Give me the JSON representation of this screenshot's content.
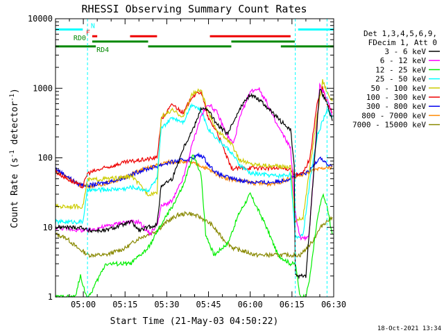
{
  "chart_data": {
    "type": "line",
    "title": "RHESSI Observing Summary Count Rates",
    "xlabel": "Start Time (21-May-03 04:50:22)",
    "ylabel_parts": [
      "Count Rate (s",
      "-1",
      " detector",
      "-1",
      ")"
    ],
    "ylabel": "Count Rate (s-1 detector-1)",
    "yscale": "log",
    "ylim": [
      1,
      10000
    ],
    "xlim_minutes": [
      0,
      100
    ],
    "x_ticks": [
      {
        "t": 10,
        "label": "05:00"
      },
      {
        "t": 25,
        "label": "05:15"
      },
      {
        "t": 40,
        "label": "05:30"
      },
      {
        "t": 55,
        "label": "05:45"
      },
      {
        "t": 70,
        "label": "06:00"
      },
      {
        "t": 85,
        "label": "06:15"
      },
      {
        "t": 100,
        "label": "06:30"
      }
    ],
    "y_ticks": [
      {
        "v": 1,
        "label": "1"
      },
      {
        "v": 10,
        "label": "10"
      },
      {
        "v": 100,
        "label": "100"
      },
      {
        "v": 1000,
        "label": "1000"
      },
      {
        "v": 10000,
        "label": "10000"
      }
    ],
    "legend_header": [
      "Det 1,3,4,5,6,9,",
      "FDecim 1, Att 0"
    ],
    "legend_position": "right",
    "footer_date": "18-Oct-2021 13:34",
    "vlines_dashed": [
      11.5,
      86.2,
      97.6
    ],
    "bars": [
      {
        "label": "N",
        "color": "#00ffff",
        "level": 7000,
        "segments": [
          [
            0,
            9.8
          ],
          [
            87.2,
            100
          ]
        ]
      },
      {
        "label": "F",
        "color": "#ee0000",
        "level": 5600,
        "segments": [
          [
            13.2,
            15.0
          ],
          [
            26.8,
            36.5
          ],
          [
            55.5,
            84.5
          ]
        ]
      },
      {
        "label": "RD0",
        "color": "#008800",
        "level": 4700,
        "segments": [
          [
            13.2,
            33.3
          ],
          [
            63.2,
            86.0
          ]
        ]
      },
      {
        "label": "RD4",
        "color": "#008800",
        "level": 4000,
        "segments": [
          [
            0,
            14.5
          ],
          [
            33.3,
            63.2
          ],
          [
            81.0,
            100
          ]
        ]
      }
    ],
    "series": [
      {
        "name": "3 - 6 keV",
        "color": "#000000",
        "points": [
          [
            0,
            10
          ],
          [
            9.8,
            10
          ],
          [
            11.5,
            9
          ],
          [
            18,
            9
          ],
          [
            27.3,
            12
          ],
          [
            30,
            9
          ],
          [
            36.5,
            11
          ],
          [
            38,
            40
          ],
          [
            42,
            50
          ],
          [
            46,
            140
          ],
          [
            50,
            290
          ],
          [
            52.3,
            520
          ],
          [
            55,
            480
          ],
          [
            58,
            300
          ],
          [
            62,
            220
          ],
          [
            66,
            500
          ],
          [
            70,
            820
          ],
          [
            73,
            700
          ],
          [
            76,
            540
          ],
          [
            79,
            400
          ],
          [
            84.5,
            250
          ],
          [
            85.8,
            80
          ],
          [
            86.2,
            2
          ],
          [
            88,
            2
          ],
          [
            90,
            2
          ],
          [
            91.5,
            12
          ],
          [
            95,
            1000
          ],
          [
            97.6,
            600
          ],
          [
            99.5,
            340
          ]
        ]
      },
      {
        "name": "6 - 12 keV",
        "color": "#ff00ff",
        "points": [
          [
            0,
            10
          ],
          [
            9.8,
            9
          ],
          [
            11.5,
            9
          ],
          [
            25,
            12
          ],
          [
            27.3,
            12
          ],
          [
            30,
            12
          ],
          [
            34,
            8
          ],
          [
            36.5,
            11
          ],
          [
            38,
            20
          ],
          [
            42,
            24
          ],
          [
            46,
            52
          ],
          [
            49,
            150
          ],
          [
            52.3,
            400
          ],
          [
            55,
            600
          ],
          [
            58,
            450
          ],
          [
            62,
            200
          ],
          [
            64,
            160
          ],
          [
            66,
            350
          ],
          [
            70,
            900
          ],
          [
            73,
            1000
          ],
          [
            76,
            620
          ],
          [
            79,
            330
          ],
          [
            84.5,
            140
          ],
          [
            86.2,
            16
          ],
          [
            88,
            7
          ],
          [
            91,
            7
          ],
          [
            91.5,
            12
          ],
          [
            95,
            1100
          ],
          [
            97.6,
            700
          ],
          [
            99.5,
            420
          ]
        ]
      },
      {
        "name": "12 - 25 keV",
        "color": "#00ee00",
        "points": [
          [
            0,
            1
          ],
          [
            7,
            1
          ],
          [
            9,
            2
          ],
          [
            11.5,
            0.9
          ],
          [
            18,
            3
          ],
          [
            27,
            3
          ],
          [
            33.3,
            5
          ],
          [
            38,
            11
          ],
          [
            42,
            20
          ],
          [
            46,
            40
          ],
          [
            49.4,
            110
          ],
          [
            52.3,
            60
          ],
          [
            54,
            8
          ],
          [
            57,
            4
          ],
          [
            62,
            6
          ],
          [
            66,
            16
          ],
          [
            70,
            30
          ],
          [
            75,
            12
          ],
          [
            80,
            4
          ],
          [
            84.5,
            3
          ],
          [
            86.2,
            3
          ],
          [
            88,
            1
          ],
          [
            90,
            1
          ],
          [
            91.5,
            2
          ],
          [
            94,
            12
          ],
          [
            96,
            30
          ],
          [
            97.6,
            20
          ],
          [
            99.5,
            8
          ]
        ]
      },
      {
        "name": "25 - 50 keV",
        "color": "#00ffff",
        "points": [
          [
            0,
            12
          ],
          [
            9.8,
            12
          ],
          [
            11.5,
            34
          ],
          [
            25,
            36
          ],
          [
            27.3,
            38
          ],
          [
            33.3,
            34
          ],
          [
            36.5,
            50
          ],
          [
            38,
            260
          ],
          [
            42,
            380
          ],
          [
            46,
            330
          ],
          [
            49,
            600
          ],
          [
            52.3,
            480
          ],
          [
            55,
            260
          ],
          [
            58,
            190
          ],
          [
            63.2,
            120
          ],
          [
            66,
            80
          ],
          [
            70,
            60
          ],
          [
            80,
            55
          ],
          [
            84.5,
            58
          ],
          [
            86.2,
            7
          ],
          [
            89,
            8
          ],
          [
            91.5,
            48
          ],
          [
            94,
            200
          ],
          [
            97.6,
            500
          ],
          [
            99.5,
            380
          ]
        ]
      },
      {
        "name": "50 - 100 keV",
        "color": "#cccc00",
        "points": [
          [
            0,
            20
          ],
          [
            9.8,
            20
          ],
          [
            11.5,
            48
          ],
          [
            25,
            52
          ],
          [
            27.3,
            55
          ],
          [
            33.3,
            30
          ],
          [
            36.5,
            32
          ],
          [
            38,
            390
          ],
          [
            42,
            480
          ],
          [
            46,
            390
          ],
          [
            49,
            820
          ],
          [
            52.3,
            950
          ],
          [
            55,
            430
          ],
          [
            58,
            250
          ],
          [
            63.2,
            160
          ],
          [
            66,
            95
          ],
          [
            70,
            82
          ],
          [
            80,
            75
          ],
          [
            84.5,
            75
          ],
          [
            86.2,
            12
          ],
          [
            89,
            14
          ],
          [
            91.5,
            75
          ],
          [
            94,
            400
          ],
          [
            96,
            1300
          ],
          [
            97.6,
            900
          ],
          [
            99.5,
            650
          ]
        ]
      },
      {
        "name": "100 - 300 keV",
        "color": "#ee0000",
        "points": [
          [
            0,
            63
          ],
          [
            5,
            48
          ],
          [
            9.8,
            38
          ],
          [
            11.5,
            60
          ],
          [
            18,
            72
          ],
          [
            25,
            86
          ],
          [
            33.3,
            96
          ],
          [
            36.5,
            100
          ],
          [
            38,
            350
          ],
          [
            42,
            590
          ],
          [
            46,
            440
          ],
          [
            49,
            760
          ],
          [
            52.3,
            900
          ],
          [
            55,
            360
          ],
          [
            58,
            240
          ],
          [
            63.2,
            70
          ],
          [
            70,
            72
          ],
          [
            80,
            70
          ],
          [
            84.5,
            70
          ],
          [
            86.2,
            55
          ],
          [
            89,
            60
          ],
          [
            91.5,
            100
          ],
          [
            94,
            600
          ],
          [
            96,
            1000
          ],
          [
            97.6,
            600
          ],
          [
            99.5,
            450
          ]
        ]
      },
      {
        "name": "300 - 800 keV",
        "color": "#0000ee",
        "points": [
          [
            0,
            70
          ],
          [
            4,
            55
          ],
          [
            8,
            42
          ],
          [
            12,
            40
          ],
          [
            18,
            44
          ],
          [
            25,
            52
          ],
          [
            30,
            64
          ],
          [
            36.5,
            76
          ],
          [
            40,
            84
          ],
          [
            44,
            90
          ],
          [
            48,
            96
          ],
          [
            51,
            108
          ],
          [
            53,
            105
          ],
          [
            55,
            80
          ],
          [
            58,
            60
          ],
          [
            62,
            52
          ],
          [
            66,
            48
          ],
          [
            70,
            45
          ],
          [
            76,
            44
          ],
          [
            80,
            46
          ],
          [
            84,
            50
          ],
          [
            87,
            56
          ],
          [
            91,
            62
          ],
          [
            95,
            104
          ],
          [
            97.6,
            80
          ],
          [
            99.5,
            76
          ]
        ]
      },
      {
        "name": "800 - 7000 keV",
        "color": "#ff8800",
        "points": [
          [
            0,
            68
          ],
          [
            4,
            54
          ],
          [
            8,
            42
          ],
          [
            12,
            39
          ],
          [
            18,
            43
          ],
          [
            25,
            52
          ],
          [
            30,
            65
          ],
          [
            36.5,
            78
          ],
          [
            40,
            86
          ],
          [
            44,
            89
          ],
          [
            48,
            86
          ],
          [
            52,
            78
          ],
          [
            55,
            68
          ],
          [
            58,
            58
          ],
          [
            62,
            50
          ],
          [
            66,
            47
          ],
          [
            70,
            44
          ],
          [
            76,
            42
          ],
          [
            80,
            44
          ],
          [
            84,
            50
          ],
          [
            88,
            56
          ],
          [
            92,
            64
          ],
          [
            96,
            70
          ],
          [
            99.5,
            74
          ]
        ]
      },
      {
        "name": "7000 - 15000 keV",
        "color": "#888800",
        "points": [
          [
            0,
            8
          ],
          [
            4,
            7
          ],
          [
            8,
            5
          ],
          [
            12,
            4
          ],
          [
            18,
            4
          ],
          [
            25,
            5
          ],
          [
            30,
            7
          ],
          [
            36.5,
            9
          ],
          [
            40,
            12
          ],
          [
            44,
            15
          ],
          [
            48,
            16
          ],
          [
            52,
            14
          ],
          [
            56,
            11
          ],
          [
            60,
            7
          ],
          [
            64,
            5
          ],
          [
            68,
            4.5
          ],
          [
            72,
            4
          ],
          [
            80,
            4
          ],
          [
            84,
            4
          ],
          [
            88,
            4
          ],
          [
            92,
            6
          ],
          [
            96,
            11
          ],
          [
            99.5,
            14
          ]
        ]
      }
    ]
  }
}
